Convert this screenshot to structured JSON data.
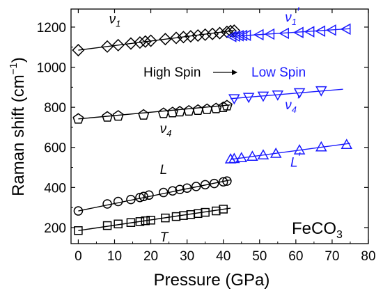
{
  "chart_data": {
    "type": "scatter",
    "xlabel": "Pressure (GPa)",
    "ylabel": "Raman shift (cm",
    "ylabel_unit_exponent": "−1",
    "ylabel_close": ")",
    "xlim": [
      -2,
      80
    ],
    "ylim": [
      120,
      1290
    ],
    "x_ticks": [
      0,
      10,
      20,
      30,
      40,
      50,
      60,
      70,
      80
    ],
    "y_ticks": [
      200,
      400,
      600,
      800,
      1000,
      1200
    ],
    "compound_label": "FeCO",
    "compound_subscript": "3",
    "transition_label_left": "High Spin",
    "transition_label_right": "Low Spin",
    "annotations": [
      {
        "series": "v1_hs",
        "base": "ν",
        "sub": "1",
        "prime": ""
      },
      {
        "series": "v1_ls",
        "base": "ν",
        "sub": "1",
        "prime": "′"
      },
      {
        "series": "v4_hs",
        "base": "ν",
        "sub": "4",
        "prime": ""
      },
      {
        "series": "v4_ls",
        "base": "ν",
        "sub": "4",
        "prime": "′"
      },
      {
        "series": "L_hs",
        "base": "L",
        "sub": "",
        "prime": ""
      },
      {
        "series": "L_ls",
        "base": "L",
        "sub": "",
        "prime": "′"
      },
      {
        "series": "T_hs",
        "base": "T",
        "sub": "",
        "prime": ""
      }
    ],
    "colors": {
      "high_spin": "#000000",
      "low_spin": "#1a1aff"
    },
    "series": [
      {
        "id": "v1_hs",
        "marker": "diamond",
        "spin": "high",
        "x": [
          0,
          8,
          11,
          14.5,
          17,
          18.5,
          20,
          24,
          27,
          29,
          31,
          33,
          35,
          37,
          39,
          41,
          42,
          43
        ],
        "y": [
          1085,
          1103,
          1110,
          1118,
          1123,
          1128,
          1132,
          1140,
          1146,
          1150,
          1154,
          1158,
          1162,
          1166,
          1170,
          1176,
          1180,
          1182
        ],
        "fit": [
          [
            0,
            1085
          ],
          [
            43,
            1183
          ]
        ]
      },
      {
        "id": "v1_ls",
        "marker": "triangle-left",
        "spin": "low",
        "x": [
          42.5,
          43.5,
          44.5,
          45.5,
          46.5,
          50,
          53,
          57,
          61,
          64,
          67,
          70,
          74
        ],
        "y": [
          1153,
          1155,
          1157,
          1158,
          1159,
          1162,
          1165,
          1169,
          1173,
          1177,
          1180,
          1185,
          1190
        ],
        "fit": [
          [
            42,
            1153
          ],
          [
            75,
            1192
          ]
        ]
      },
      {
        "id": "v4_hs",
        "marker": "pentagon",
        "spin": "high",
        "x": [
          0,
          8,
          11,
          18,
          23.5,
          26,
          28,
          30.5,
          33,
          35.5,
          38,
          40,
          41
        ],
        "y": [
          742,
          752,
          757,
          762,
          770,
          774,
          778,
          782,
          786,
          790,
          794,
          800,
          808
        ],
        "fit": [
          [
            0,
            742
          ],
          [
            42,
            812
          ]
        ]
      },
      {
        "id": "v4_ls",
        "marker": "triangle-down",
        "spin": "low",
        "x": [
          43,
          47,
          51,
          55,
          61,
          67
        ],
        "y": [
          845,
          852,
          858,
          864,
          875,
          885
        ],
        "fit": [
          [
            42,
            843
          ],
          [
            73,
            890
          ]
        ]
      },
      {
        "id": "L_hs",
        "marker": "circle",
        "spin": "high",
        "x": [
          0,
          8,
          11,
          14.5,
          17,
          18,
          19.5,
          23.5,
          26,
          28,
          30,
          32.5,
          35,
          37.5,
          40,
          41
        ],
        "y": [
          283,
          318,
          330,
          340,
          350,
          355,
          362,
          375,
          383,
          390,
          397,
          405,
          414,
          420,
          428,
          432
        ],
        "fit": [
          [
            0,
            283
          ],
          [
            42,
            438
          ]
        ]
      },
      {
        "id": "L_ls",
        "marker": "triangle-up",
        "spin": "low",
        "x": [
          42,
          43,
          45,
          48,
          51,
          54.5,
          61,
          67,
          74
        ],
        "y": [
          540,
          542,
          546,
          553,
          560,
          568,
          585,
          600,
          612
        ],
        "fit": [
          [
            42,
            540
          ],
          [
            75,
            620
          ]
        ]
      },
      {
        "id": "T_hs",
        "marker": "square",
        "spin": "high",
        "x": [
          0,
          8,
          11,
          14.5,
          17,
          18.5,
          20,
          24,
          27,
          29,
          31,
          33,
          35,
          38,
          40
        ],
        "y": [
          185,
          210,
          218,
          225,
          230,
          234,
          237,
          248,
          255,
          260,
          265,
          270,
          276,
          283,
          292
        ],
        "fit": [
          [
            0,
            185
          ],
          [
            42,
            297
          ]
        ]
      }
    ]
  }
}
